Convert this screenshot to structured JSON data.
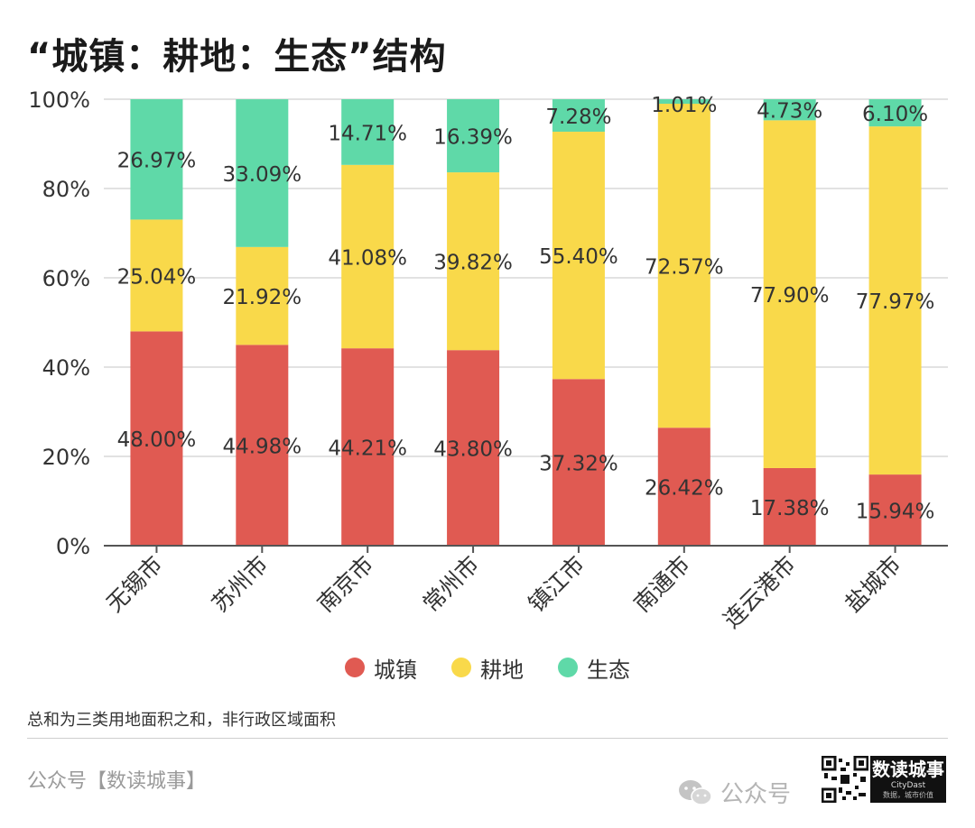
{
  "title": "“城镇：耕地：生态”结构",
  "colors": {
    "urban": "#e05a52",
    "farmland": "#f9d94a",
    "ecology": "#5fd9a8",
    "grid": "#d9d9d9",
    "axis": "#555555",
    "text": "#333333"
  },
  "chart_data": {
    "type": "bar",
    "stacked": true,
    "percent": true,
    "categories": [
      "无锡市",
      "苏州市",
      "南京市",
      "常州市",
      "镇江市",
      "南通市",
      "连云港市",
      "盐城市"
    ],
    "series": [
      {
        "name": "城镇",
        "key": "urban",
        "values": [
          48.0,
          44.98,
          44.21,
          43.8,
          37.32,
          26.42,
          17.38,
          15.94
        ]
      },
      {
        "name": "耕地",
        "key": "farmland",
        "values": [
          25.04,
          21.92,
          41.08,
          39.82,
          55.4,
          72.57,
          77.9,
          77.97
        ]
      },
      {
        "name": "生态",
        "key": "ecology",
        "values": [
          26.97,
          33.09,
          14.71,
          16.39,
          7.28,
          1.01,
          4.73,
          6.1
        ]
      }
    ],
    "labels": [
      [
        "48.00%",
        "44.98%",
        "44.21%",
        "43.80%",
        "37.32%",
        "26.42%",
        "17.38%",
        "15.94%"
      ],
      [
        "25.04%",
        "21.92%",
        "41.08%",
        "39.82%",
        "55.40%",
        "72.57%",
        "77.90%",
        "77.97%"
      ],
      [
        "26.97%",
        "33.09%",
        "14.71%",
        "16.39%",
        "7.28%",
        "1.01%",
        "4.73%",
        "6.10%"
      ]
    ],
    "ylim": [
      0,
      100
    ],
    "yticks": [
      "0%",
      "20%",
      "40%",
      "60%",
      "80%",
      "100%"
    ],
    "grid": true,
    "legend": "bottom-center"
  },
  "legend": [
    {
      "label": "城镇",
      "color": "#e05a52"
    },
    {
      "label": "耕地",
      "color": "#f9d94a"
    },
    {
      "label": "生态",
      "color": "#5fd9a8"
    }
  ],
  "note": "总和为三类用地面积之和，非行政区域面积",
  "footer": {
    "account": "公众号【数读城事】",
    "wechat": "公众号",
    "logo_main": "数读城事",
    "logo_sub": "CityDast",
    "logo_tag": "数据，城市价值"
  }
}
